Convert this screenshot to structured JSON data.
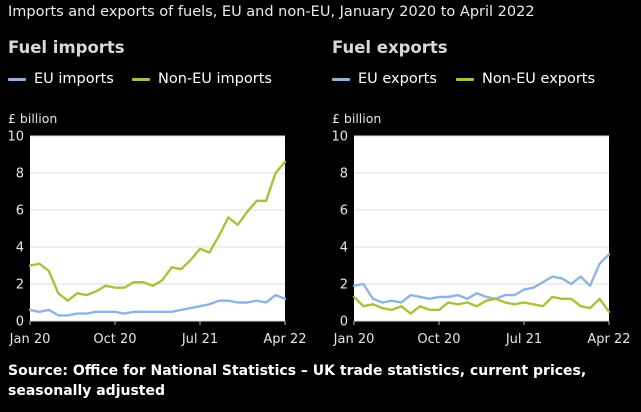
{
  "figure_title": "Imports and exports of fuels, EU and non-EU, January 2020 to April 2022",
  "source": "Source: Office for National Statistics – UK trade statistics, current prices, seasonally adjusted",
  "colors": {
    "eu": "#8fb4e3",
    "non_eu": "#a8c23a",
    "background": "#000000",
    "plot_bg": "#ffffff"
  },
  "chart_data": [
    {
      "type": "line",
      "title": "Fuel imports",
      "ylabel": "£ billion",
      "xlabel": "",
      "ylim": [
        0,
        10
      ],
      "yticks": [
        "0",
        "2",
        "4",
        "6",
        "8",
        "10"
      ],
      "xticks": [
        {
          "label": "Jan 20",
          "index": 0
        },
        {
          "label": "Oct 20",
          "index": 9
        },
        {
          "label": "Jul 21",
          "index": 18
        },
        {
          "label": "Apr 22",
          "index": 27
        }
      ],
      "grid": true,
      "legend": "top-left",
      "series": [
        {
          "name": "EU imports",
          "color": "#8fb4e3",
          "values": [
            0.6,
            0.5,
            0.6,
            0.3,
            0.3,
            0.4,
            0.4,
            0.5,
            0.5,
            0.5,
            0.4,
            0.5,
            0.5,
            0.5,
            0.5,
            0.5,
            0.6,
            0.7,
            0.8,
            0.9,
            1.1,
            1.1,
            1.0,
            1.0,
            1.1,
            1.0,
            1.4,
            1.2
          ]
        },
        {
          "name": "Non-EU imports",
          "color": "#a8c23a",
          "values": [
            3.0,
            3.1,
            2.7,
            1.5,
            1.1,
            1.5,
            1.4,
            1.6,
            1.9,
            1.8,
            1.8,
            2.1,
            2.1,
            1.9,
            2.2,
            2.9,
            2.8,
            3.3,
            3.9,
            3.7,
            4.6,
            5.6,
            5.2,
            5.9,
            6.5,
            6.5,
            8.0,
            8.6
          ]
        }
      ]
    },
    {
      "type": "line",
      "title": "Fuel exports",
      "ylabel": "£ billion",
      "xlabel": "",
      "ylim": [
        0,
        10
      ],
      "yticks": [
        "0",
        "2",
        "4",
        "6",
        "8",
        "10"
      ],
      "xticks": [
        {
          "label": "Jan 20",
          "index": 0
        },
        {
          "label": "Oct 20",
          "index": 9
        },
        {
          "label": "Jul 21",
          "index": 18
        },
        {
          "label": "Apr 22",
          "index": 27
        }
      ],
      "grid": true,
      "legend": "top-left",
      "series": [
        {
          "name": "EU exports",
          "color": "#8fb4e3",
          "values": [
            1.9,
            2.0,
            1.2,
            1.0,
            1.1,
            1.0,
            1.4,
            1.3,
            1.2,
            1.3,
            1.3,
            1.4,
            1.2,
            1.5,
            1.3,
            1.2,
            1.4,
            1.4,
            1.7,
            1.8,
            2.1,
            2.4,
            2.3,
            2.0,
            2.4,
            1.9,
            3.1,
            3.6
          ]
        },
        {
          "name": "Non-EU exports",
          "color": "#a8c23a",
          "values": [
            1.3,
            0.8,
            0.9,
            0.7,
            0.6,
            0.8,
            0.4,
            0.8,
            0.6,
            0.6,
            1.0,
            0.9,
            1.0,
            0.8,
            1.1,
            1.2,
            1.0,
            0.9,
            1.0,
            0.9,
            0.8,
            1.3,
            1.2,
            1.2,
            0.8,
            0.7,
            1.2,
            0.5
          ]
        }
      ]
    }
  ]
}
